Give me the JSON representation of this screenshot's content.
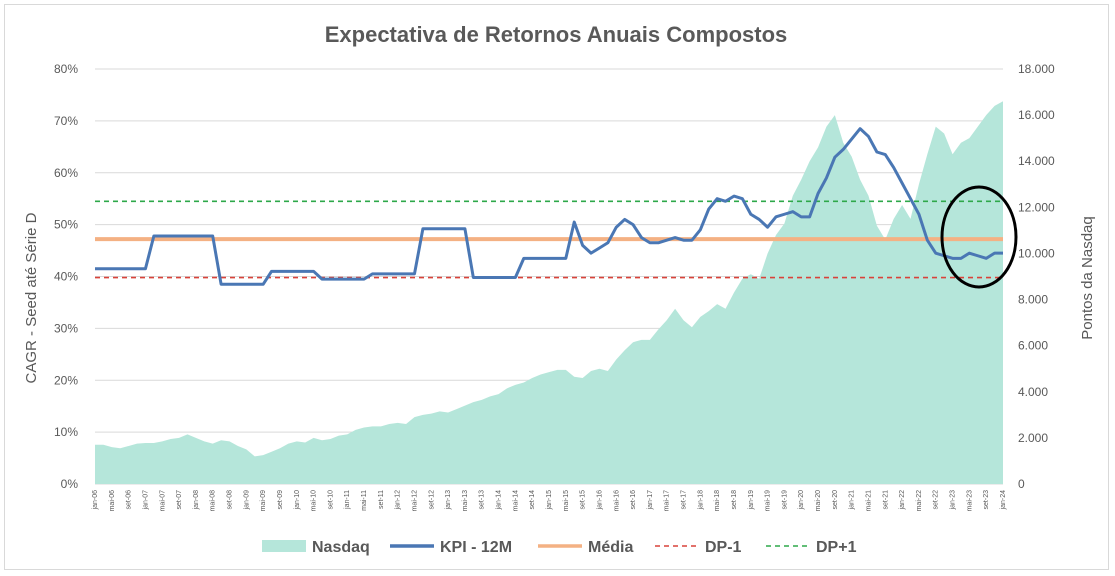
{
  "chart_data": {
    "type": "combo",
    "title": "Expectativa de Retornos Anuais Compostos",
    "ylabel_left": "CAGR - Seed até Série D",
    "ylabel_right": "Pontos da Nasdaq",
    "ylim_left": [
      0,
      80
    ],
    "ylim_right": [
      0,
      18000
    ],
    "yticks_left": [
      "0%",
      "10%",
      "20%",
      "30%",
      "40%",
      "50%",
      "60%",
      "70%",
      "80%"
    ],
    "yticks_right": [
      "0",
      "2.000",
      "4.000",
      "6.000",
      "8.000",
      "10.000",
      "12.000",
      "14.000",
      "16.000",
      "18.000"
    ],
    "xtick_labels": [
      "jan-06",
      "mai-06",
      "set-06",
      "jan-07",
      "mai-07",
      "set-07",
      "jan-08",
      "mai-08",
      "set-08",
      "jan-09",
      "mai-09",
      "set-09",
      "jan-10",
      "mai-10",
      "set-10",
      "jan-11",
      "mai-11",
      "set-11",
      "jan-12",
      "mai-12",
      "set-12",
      "jan-13",
      "mai-13",
      "set-13",
      "jan-14",
      "mai-14",
      "set-14",
      "jan-15",
      "mai-15",
      "set-15",
      "jan-16",
      "mai-16",
      "set-16",
      "jan-17",
      "mai-17",
      "set-17",
      "jan-18",
      "mai-18",
      "set-18",
      "jan-19",
      "mai-19",
      "set-19",
      "jan-20",
      "mai-20",
      "set-20",
      "jan-21",
      "mai-21",
      "set-21",
      "jan-22",
      "mai-22",
      "set-22",
      "jan-23",
      "mai-23",
      "set-23",
      "jan-24"
    ],
    "series": [
      {
        "name": "Nasdaq",
        "kind": "area",
        "axis": "right",
        "color": "#b5e6da",
        "x": [
          0,
          2,
          4,
          6,
          8,
          10,
          12,
          14,
          16,
          18,
          20,
          22,
          24,
          26,
          28,
          30,
          32,
          34,
          36,
          38,
          40,
          42,
          44,
          46,
          48,
          50,
          52,
          54,
          56,
          58,
          60,
          62,
          64,
          66,
          68,
          70,
          72,
          74,
          76,
          78,
          80,
          82,
          84,
          86,
          88,
          90,
          92,
          94,
          96,
          98,
          100,
          102,
          104,
          106,
          108,
          110,
          112,
          114,
          116,
          118,
          120,
          122,
          124,
          126,
          128,
          130,
          132,
          134,
          136,
          138,
          140,
          142,
          144,
          146,
          148,
          150,
          152,
          154,
          156,
          158,
          160,
          162,
          164,
          166,
          168,
          170,
          172,
          174,
          176,
          178,
          180,
          182,
          184,
          186,
          188,
          190,
          192,
          194,
          196,
          198,
          200,
          202,
          204,
          206,
          208,
          210,
          212,
          214,
          216
        ],
        "values": [
          1700,
          1700,
          1600,
          1550,
          1650,
          1750,
          1780,
          1780,
          1850,
          1950,
          2000,
          2150,
          2000,
          1850,
          1750,
          1900,
          1850,
          1650,
          1500,
          1200,
          1250,
          1400,
          1550,
          1750,
          1850,
          1800,
          2000,
          1900,
          1950,
          2100,
          2150,
          2350,
          2450,
          2500,
          2500,
          2600,
          2650,
          2600,
          2900,
          3000,
          3050,
          3150,
          3100,
          3250,
          3400,
          3550,
          3650,
          3800,
          3900,
          4150,
          4300,
          4400,
          4600,
          4750,
          4850,
          4950,
          4950,
          4650,
          4600,
          4900,
          5000,
          4900,
          5400,
          5800,
          6150,
          6250,
          6250,
          6700,
          7100,
          7600,
          7100,
          6800,
          7250,
          7500,
          7800,
          7600,
          8300,
          8900,
          9100,
          8900,
          10000,
          10800,
          11300,
          12500,
          13200,
          14000,
          14600,
          15500,
          16000,
          14800,
          14200,
          13200,
          12500,
          11200,
          10600,
          11500,
          12100,
          11500,
          13000,
          14300,
          15500,
          15200,
          14300,
          14800,
          15000,
          15500,
          16000,
          16400,
          16600
        ]
      },
      {
        "name": "KPI - 12M",
        "kind": "line",
        "axis": "left",
        "color": "#4a77b4",
        "x": [
          0,
          2,
          4,
          6,
          8,
          10,
          12,
          14,
          16,
          18,
          20,
          22,
          24,
          26,
          28,
          30,
          32,
          34,
          36,
          38,
          40,
          42,
          44,
          46,
          48,
          50,
          52,
          54,
          56,
          58,
          60,
          62,
          64,
          66,
          68,
          70,
          72,
          74,
          76,
          78,
          80,
          82,
          84,
          86,
          88,
          90,
          92,
          94,
          96,
          98,
          100,
          102,
          104,
          106,
          108,
          110,
          112,
          114,
          116,
          118,
          120,
          122,
          124,
          126,
          128,
          130,
          132,
          134,
          136,
          138,
          140,
          142,
          144,
          146,
          148,
          150,
          152,
          154,
          156,
          158,
          160,
          162,
          164,
          166,
          168,
          170,
          172,
          174,
          176,
          178,
          180,
          182,
          184,
          186,
          188,
          190,
          192,
          194,
          196,
          198,
          200,
          202,
          204,
          206,
          208,
          210,
          212,
          214,
          216
        ],
        "values": [
          41.5,
          41.5,
          41.5,
          41.5,
          41.5,
          41.5,
          41.5,
          47.8,
          47.8,
          47.8,
          47.8,
          47.8,
          47.8,
          47.8,
          47.8,
          38.5,
          38.5,
          38.5,
          38.5,
          38.5,
          38.5,
          41,
          41,
          41,
          41,
          41,
          41,
          39.5,
          39.5,
          39.5,
          39.5,
          39.5,
          39.5,
          40.5,
          40.5,
          40.5,
          40.5,
          40.5,
          40.5,
          49.2,
          49.2,
          49.2,
          49.2,
          49.2,
          49.2,
          39.8,
          39.8,
          39.8,
          39.8,
          39.8,
          39.8,
          43.5,
          43.5,
          43.5,
          43.5,
          43.5,
          43.5,
          50.5,
          46,
          44.5,
          45.5,
          46.5,
          49.5,
          51,
          50,
          47.5,
          46.5,
          46.5,
          47,
          47.5,
          47,
          47,
          49,
          53,
          55,
          54.5,
          55.5,
          55,
          52,
          51,
          49.5,
          51.5,
          52,
          52.5,
          51.5,
          51.5,
          56,
          59,
          63,
          64.5,
          66.5,
          68.5,
          67,
          64,
          63.5,
          61,
          58,
          55,
          52,
          47,
          44.5,
          44,
          43.5,
          43.5,
          44.5,
          44,
          43.5,
          44.5,
          44.5
        ]
      },
      {
        "name": "Média",
        "kind": "hline",
        "axis": "left",
        "color": "#f4b183",
        "value": 47.2
      },
      {
        "name": "DP-1",
        "kind": "hline",
        "axis": "left",
        "color": "#d9423a",
        "value": 39.8,
        "dash": true
      },
      {
        "name": "DP+1",
        "kind": "hline",
        "axis": "left",
        "color": "#2ea84a",
        "value": 54.5,
        "dash": true
      }
    ],
    "annotation": "circle-highlight-recent",
    "legend_position": "bottom"
  }
}
